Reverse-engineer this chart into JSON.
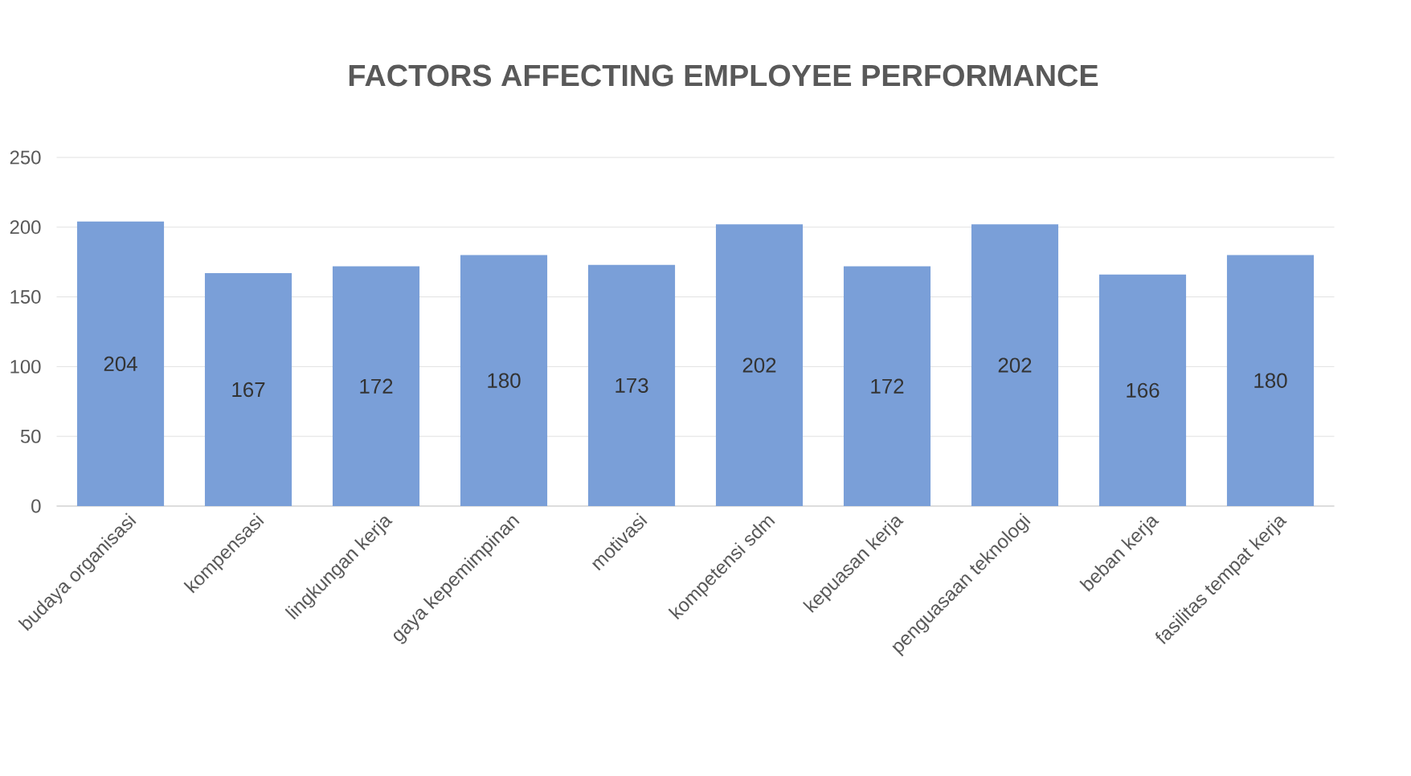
{
  "chart_data": {
    "type": "bar",
    "title": "FACTORS AFFECTING EMPLOYEE PERFORMANCE",
    "categories": [
      "budaya organisasi",
      "kompensasi",
      "lingkungan kerja",
      "gaya kepemimpinan",
      "motivasi",
      "kompetensi sdm",
      "kepuasan kerja",
      "penguasaan teknologi",
      "beban kerja",
      "fasilitas tempat kerja"
    ],
    "values": [
      204,
      167,
      172,
      180,
      173,
      202,
      172,
      202,
      166,
      180
    ],
    "color": "#7a9fd8",
    "ylim": [
      0,
      250
    ],
    "yticks": [
      0,
      50,
      100,
      150,
      200,
      250
    ],
    "grid": "y",
    "data_labels": true
  }
}
